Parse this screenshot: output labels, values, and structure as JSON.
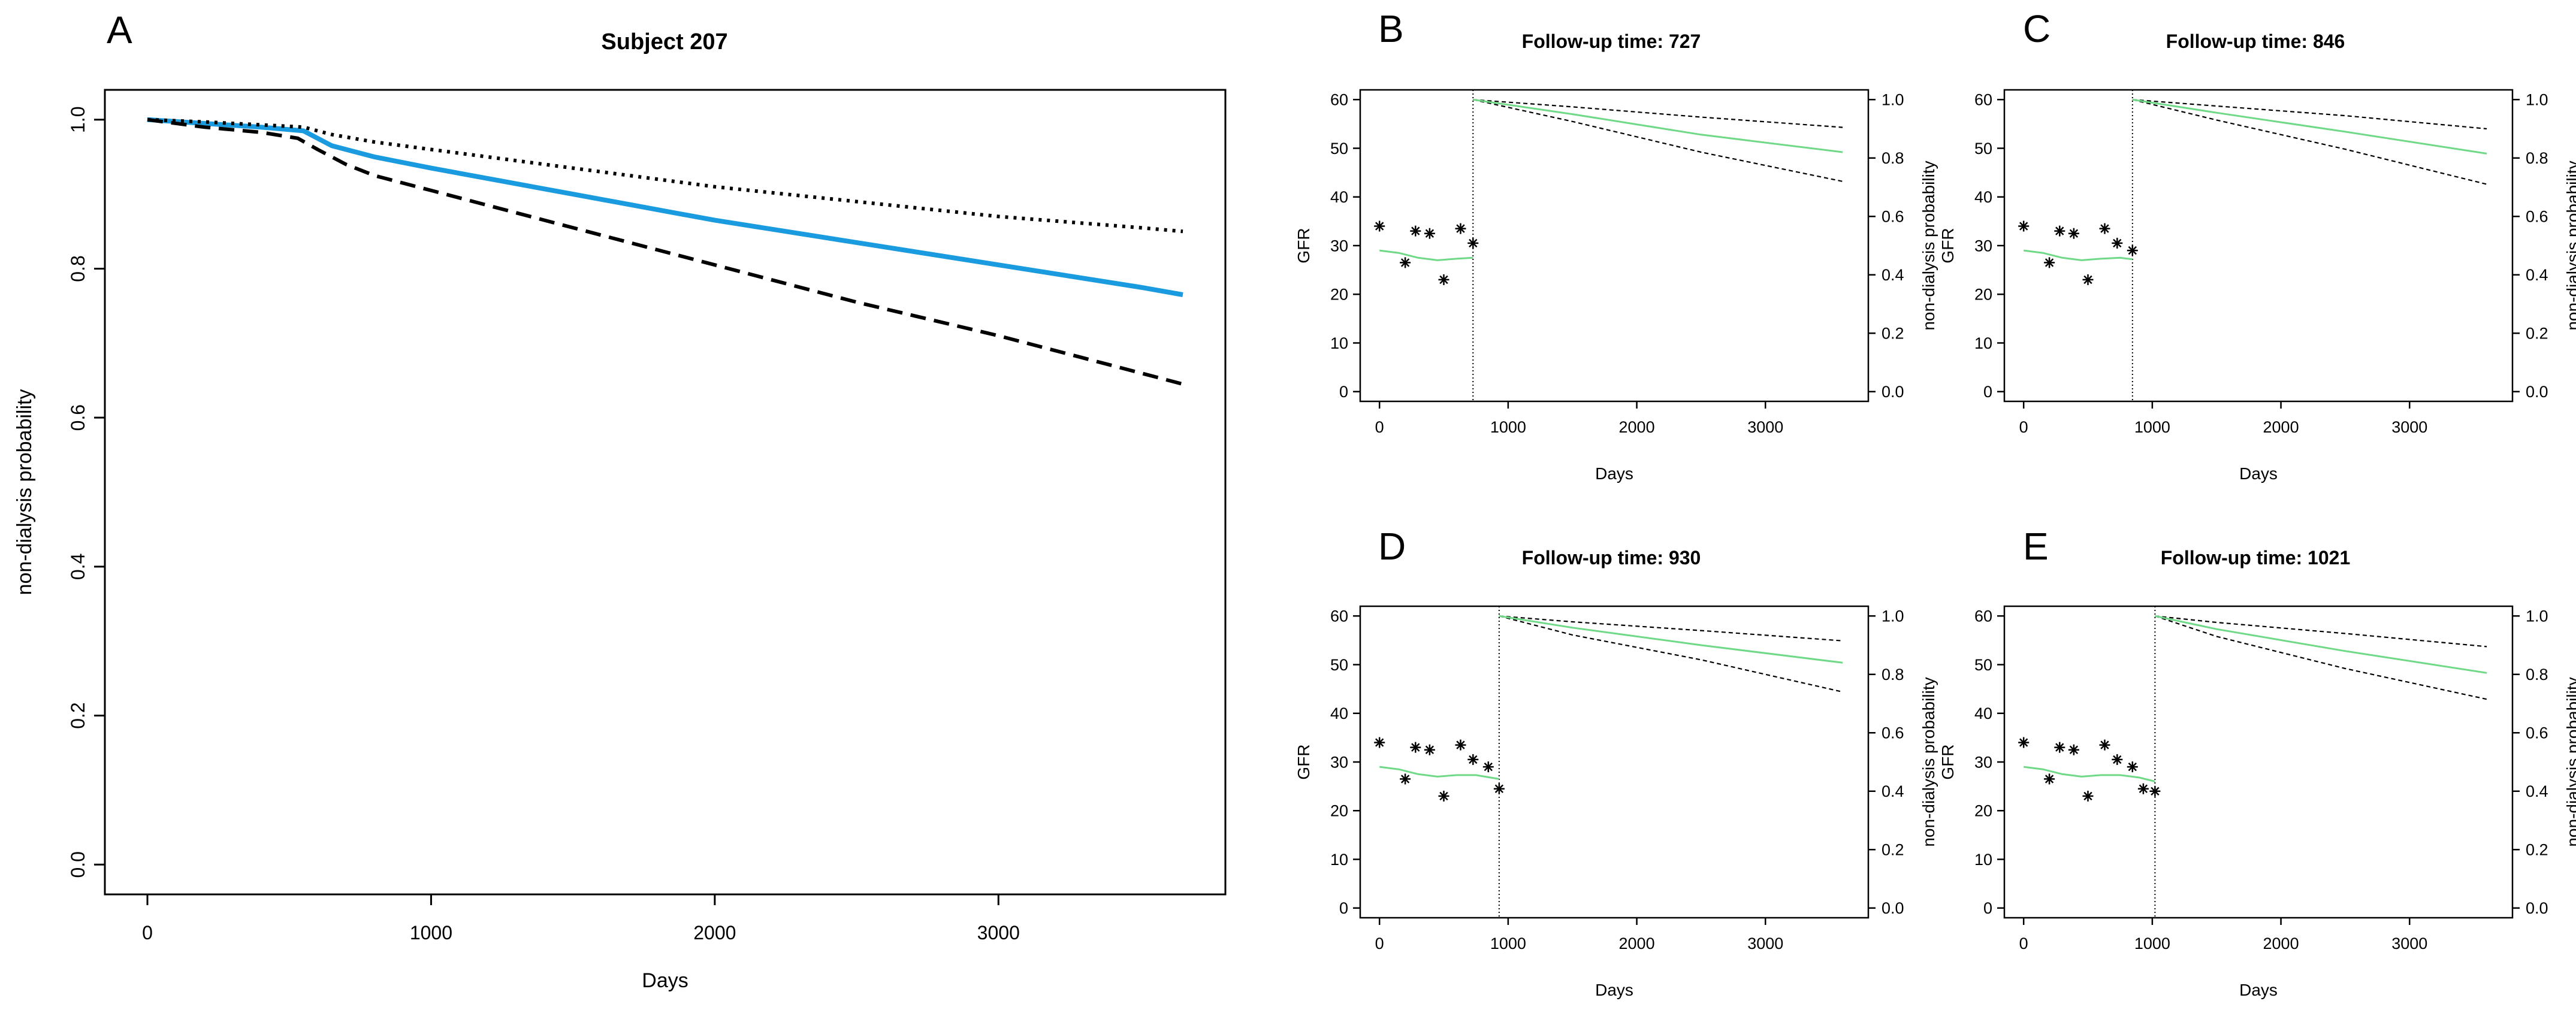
{
  "colors": {
    "estimate": "#1a9be0",
    "lower": "#000000",
    "upper": "#000000",
    "gfr_fit": "#6fd987",
    "gfr_points": "#000000",
    "survival_small": "#6fd987",
    "band_small": "#000000"
  },
  "chart_data": [
    {
      "panel": "A",
      "type": "line",
      "title": "Subject 207",
      "xlabel": "Days",
      "ylabel": "non-dialysis probability",
      "xlim": [
        -150,
        3800
      ],
      "ylim": [
        -0.04,
        1.04
      ],
      "x_ticks": [
        0,
        1000,
        2000,
        3000
      ],
      "y_ticks": [
        0.0,
        0.2,
        0.4,
        0.6,
        0.8,
        1.0
      ],
      "y_tick_labels": [
        "0.0",
        "0.2",
        "0.4",
        "0.6",
        "0.8",
        "1.0"
      ],
      "series": [
        {
          "role": "estimate",
          "style": "solid",
          "x": [
            0,
            200,
            400,
            550,
            650,
            800,
            1000,
            1500,
            2000,
            2500,
            3000,
            3500,
            3650
          ],
          "y": [
            1.0,
            0.995,
            0.99,
            0.985,
            0.965,
            0.95,
            0.935,
            0.9,
            0.865,
            0.835,
            0.805,
            0.775,
            0.765
          ]
        },
        {
          "role": "upper",
          "style": "dotted",
          "x": [
            0,
            200,
            400,
            550,
            650,
            800,
            1000,
            1500,
            2000,
            2500,
            3000,
            3500,
            3650
          ],
          "y": [
            1.0,
            0.997,
            0.993,
            0.99,
            0.98,
            0.97,
            0.96,
            0.935,
            0.91,
            0.89,
            0.87,
            0.855,
            0.85
          ]
        },
        {
          "role": "lower",
          "style": "dashed",
          "x": [
            0,
            200,
            400,
            530,
            600,
            700,
            800,
            1000,
            1500,
            2000,
            2500,
            3000,
            3500,
            3650
          ],
          "y": [
            1.0,
            0.99,
            0.983,
            0.975,
            0.96,
            0.94,
            0.925,
            0.905,
            0.855,
            0.805,
            0.755,
            0.71,
            0.66,
            0.645
          ]
        }
      ]
    },
    {
      "panel": "B",
      "type": "line",
      "title": "Follow-up time: 727",
      "follow_up_time": 727,
      "xlabel": "Days",
      "ylabel_left": "GFR",
      "ylabel_right": "non-dialysis probability",
      "xlim": [
        -150,
        3800
      ],
      "ylim_left": [
        -2,
        62
      ],
      "ylim_right": [
        0,
        1.0
      ],
      "x_ticks": [
        0,
        1000,
        2000,
        3000
      ],
      "y_ticks_left": [
        0,
        10,
        20,
        30,
        40,
        50,
        60
      ],
      "y_ticks_right": [
        0.0,
        0.2,
        0.4,
        0.6,
        0.8,
        1.0
      ],
      "y_tick_labels_right": [
        "0.0",
        "0.2",
        "0.4",
        "0.6",
        "0.8",
        "1.0"
      ],
      "gfr_points": {
        "x": [
          0,
          200,
          280,
          390,
          500,
          630,
          727
        ],
        "y": [
          34,
          26.5,
          33,
          32.5,
          23,
          33.5,
          30.5
        ]
      },
      "gfr_fit": {
        "x": [
          0,
          150,
          300,
          450,
          600,
          727
        ],
        "y": [
          29,
          28.5,
          27.5,
          27,
          27.3,
          27.5
        ]
      },
      "survival": {
        "x": [
          727,
          1500,
          2500,
          3600
        ],
        "y": [
          1.0,
          0.95,
          0.88,
          0.82
        ]
      },
      "survival_upper": {
        "x": [
          727,
          1500,
          2500,
          3600
        ],
        "y": [
          1.0,
          0.975,
          0.94,
          0.905
        ]
      },
      "survival_lower": {
        "x": [
          727,
          1500,
          2500,
          3600
        ],
        "y": [
          1.0,
          0.925,
          0.82,
          0.72
        ]
      }
    },
    {
      "panel": "C",
      "type": "line",
      "title": "Follow-up time: 846",
      "follow_up_time": 846,
      "xlabel": "Days",
      "ylabel_left": "GFR",
      "ylabel_right": "non-dialysis probability",
      "xlim": [
        -150,
        3800
      ],
      "ylim_left": [
        -2,
        62
      ],
      "ylim_right": [
        0,
        1.0
      ],
      "x_ticks": [
        0,
        1000,
        2000,
        3000
      ],
      "y_ticks_left": [
        0,
        10,
        20,
        30,
        40,
        50,
        60
      ],
      "y_ticks_right": [
        0.0,
        0.2,
        0.4,
        0.6,
        0.8,
        1.0
      ],
      "y_tick_labels_right": [
        "0.0",
        "0.2",
        "0.4",
        "0.6",
        "0.8",
        "1.0"
      ],
      "gfr_points": {
        "x": [
          0,
          200,
          280,
          390,
          500,
          630,
          727,
          846
        ],
        "y": [
          34,
          26.5,
          33,
          32.5,
          23,
          33.5,
          30.5,
          29
        ]
      },
      "gfr_fit": {
        "x": [
          0,
          150,
          300,
          450,
          600,
          750,
          846
        ],
        "y": [
          29,
          28.5,
          27.5,
          27,
          27.3,
          27.5,
          27.2
        ]
      },
      "survival": {
        "x": [
          846,
          1500,
          2500,
          3600
        ],
        "y": [
          1.0,
          0.955,
          0.89,
          0.815
        ]
      },
      "survival_upper": {
        "x": [
          846,
          1500,
          2500,
          3600
        ],
        "y": [
          1.0,
          0.978,
          0.945,
          0.9
        ]
      },
      "survival_lower": {
        "x": [
          846,
          1500,
          2500,
          3600
        ],
        "y": [
          1.0,
          0.93,
          0.83,
          0.71
        ]
      }
    },
    {
      "panel": "D",
      "type": "line",
      "title": "Follow-up time: 930",
      "follow_up_time": 930,
      "xlabel": "Days",
      "ylabel_left": "GFR",
      "ylabel_right": "non-dialysis probability",
      "xlim": [
        -150,
        3800
      ],
      "ylim_left": [
        -2,
        62
      ],
      "ylim_right": [
        0,
        1.0
      ],
      "x_ticks": [
        0,
        1000,
        2000,
        3000
      ],
      "y_ticks_left": [
        0,
        10,
        20,
        30,
        40,
        50,
        60
      ],
      "y_ticks_right": [
        0.0,
        0.2,
        0.4,
        0.6,
        0.8,
        1.0
      ],
      "y_tick_labels_right": [
        "0.0",
        "0.2",
        "0.4",
        "0.6",
        "0.8",
        "1.0"
      ],
      "gfr_points": {
        "x": [
          0,
          200,
          280,
          390,
          500,
          630,
          727,
          846,
          930
        ],
        "y": [
          34,
          26.5,
          33,
          32.5,
          23,
          33.5,
          30.5,
          29,
          24.5
        ]
      },
      "gfr_fit": {
        "x": [
          0,
          150,
          300,
          450,
          600,
          750,
          930
        ],
        "y": [
          29,
          28.5,
          27.5,
          27,
          27.3,
          27.3,
          26.5
        ]
      },
      "survival": {
        "x": [
          930,
          1500,
          2500,
          3600
        ],
        "y": [
          1.0,
          0.96,
          0.9,
          0.84
        ]
      },
      "survival_upper": {
        "x": [
          930,
          1500,
          2500,
          3600
        ],
        "y": [
          1.0,
          0.98,
          0.95,
          0.915
        ]
      },
      "survival_lower": {
        "x": [
          930,
          1500,
          2500,
          3600
        ],
        "y": [
          1.0,
          0.935,
          0.85,
          0.74
        ]
      }
    },
    {
      "panel": "E",
      "type": "line",
      "title": "Follow-up time: 1021",
      "follow_up_time": 1021,
      "xlabel": "Days",
      "ylabel_left": "GFR",
      "ylabel_right": "non-dialysis probability",
      "xlim": [
        -150,
        3800
      ],
      "ylim_left": [
        -2,
        62
      ],
      "ylim_right": [
        0,
        1.0
      ],
      "x_ticks": [
        0,
        1000,
        2000,
        3000
      ],
      "y_ticks_left": [
        0,
        10,
        20,
        30,
        40,
        50,
        60
      ],
      "y_ticks_right": [
        0.0,
        0.2,
        0.4,
        0.6,
        0.8,
        1.0
      ],
      "y_tick_labels_right": [
        "0.0",
        "0.2",
        "0.4",
        "0.6",
        "0.8",
        "1.0"
      ],
      "gfr_points": {
        "x": [
          0,
          200,
          280,
          390,
          500,
          630,
          727,
          846,
          930,
          1021
        ],
        "y": [
          34,
          26.5,
          33,
          32.5,
          23,
          33.5,
          30.5,
          29,
          24.5,
          24
        ]
      },
      "gfr_fit": {
        "x": [
          0,
          150,
          300,
          450,
          600,
          750,
          900,
          1021
        ],
        "y": [
          29,
          28.5,
          27.5,
          27,
          27.3,
          27.3,
          26.8,
          26
        ]
      },
      "survival": {
        "x": [
          1021,
          1500,
          2500,
          3600
        ],
        "y": [
          1.0,
          0.955,
          0.88,
          0.805
        ]
      },
      "survival_upper": {
        "x": [
          1021,
          1500,
          2500,
          3600
        ],
        "y": [
          1.0,
          0.978,
          0.94,
          0.895
        ]
      },
      "survival_lower": {
        "x": [
          1021,
          1500,
          2500,
          3600
        ],
        "y": [
          1.0,
          0.93,
          0.82,
          0.715
        ]
      }
    }
  ]
}
